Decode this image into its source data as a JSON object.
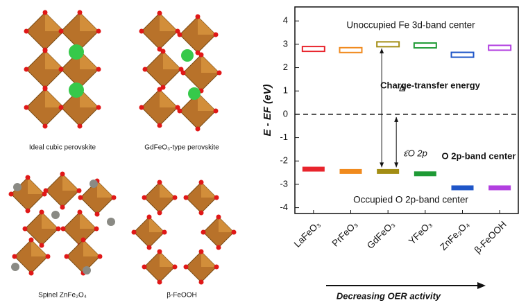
{
  "structures": [
    "Ideal cubic perovskite",
    "GdFeO₃-type perovskite",
    "Spinel ZnFe₂O₄",
    "β-FeOOH"
  ],
  "chart_data": {
    "type": "band-center",
    "y_label": "E - EF (eV)",
    "x_label": "Decreasing OER activity",
    "annotations": {
      "unoccupied": "Unoccupied Fe 3d-band center",
      "occupied": "Occupied O 2p-band center",
      "delta": "Δ",
      "charge_transfer": "Charge-transfer energy",
      "epsilon": "ε̄O 2p",
      "o2p": "O 2p-band center"
    },
    "categories": [
      "LaFeO₃",
      "PrFeO₃",
      "GdFeO₃",
      "YFeO₃",
      "ZnFe₂O₄",
      "β-FeOOH"
    ],
    "colors": [
      "#e8242c",
      "#f08a1e",
      "#a38d14",
      "#1e9a35",
      "#1f56c8",
      "#b23fe0"
    ],
    "series": [
      {
        "name": "Fe 3d",
        "values": [
          2.8,
          2.75,
          3.0,
          2.95,
          2.55,
          2.85
        ]
      },
      {
        "name": "O 2p",
        "values": [
          -2.35,
          -2.45,
          -2.45,
          -2.55,
          -3.15,
          -3.15
        ]
      }
    ],
    "reference_line": 0,
    "ylim": [
      -4.25,
      4.6
    ],
    "yticks": [
      4,
      3,
      2,
      1,
      0,
      -1,
      -2,
      -3,
      -4
    ]
  }
}
